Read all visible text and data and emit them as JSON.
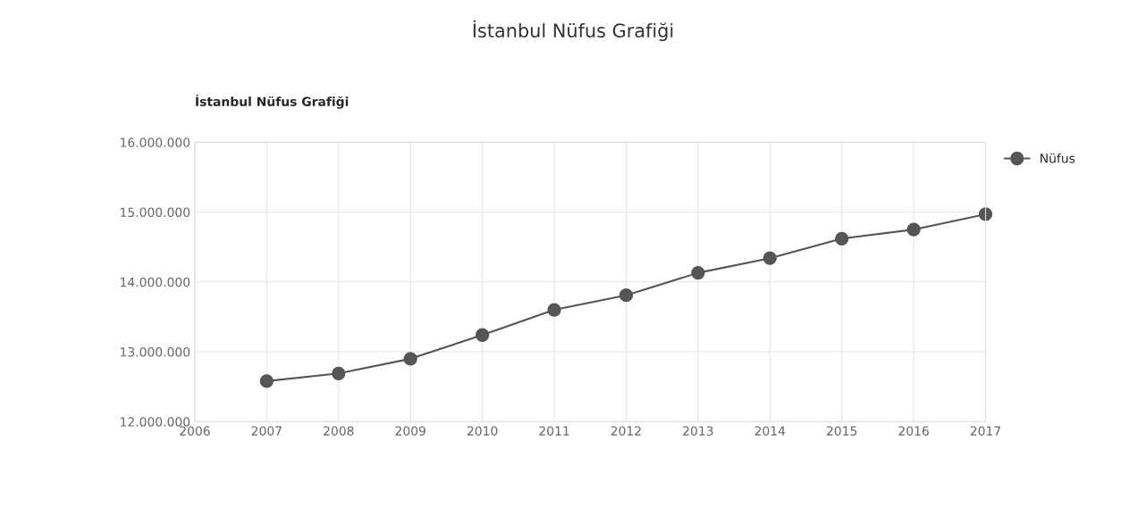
{
  "chart_data": {
    "type": "line",
    "title": "İstanbul Nüfus Grafiği",
    "subtitle": "İstanbul Nüfus Grafiği",
    "x": [
      2007,
      2008,
      2009,
      2010,
      2011,
      2012,
      2013,
      2014,
      2015,
      2016,
      2017
    ],
    "series": [
      {
        "name": "Nüfus",
        "color": "#555555",
        "values": [
          12580000,
          12690000,
          12900000,
          13240000,
          13600000,
          13810000,
          14130000,
          14340000,
          14620000,
          14750000,
          14970000
        ]
      }
    ],
    "xlim": [
      2006,
      2017
    ],
    "xticks": [
      2006,
      2007,
      2008,
      2009,
      2010,
      2011,
      2012,
      2013,
      2014,
      2015,
      2016,
      2017
    ],
    "ylim": [
      12000000,
      16000000
    ],
    "yticks": [
      {
        "value": 12000000,
        "label": "12.000.000"
      },
      {
        "value": 13000000,
        "label": "13.000.000"
      },
      {
        "value": 14000000,
        "label": "14.000.000"
      },
      {
        "value": 15000000,
        "label": "15.000.000"
      },
      {
        "value": 16000000,
        "label": "16.000.000"
      }
    ],
    "grid": true,
    "legend": "top right",
    "marker": "circle",
    "line_style": "solid"
  }
}
